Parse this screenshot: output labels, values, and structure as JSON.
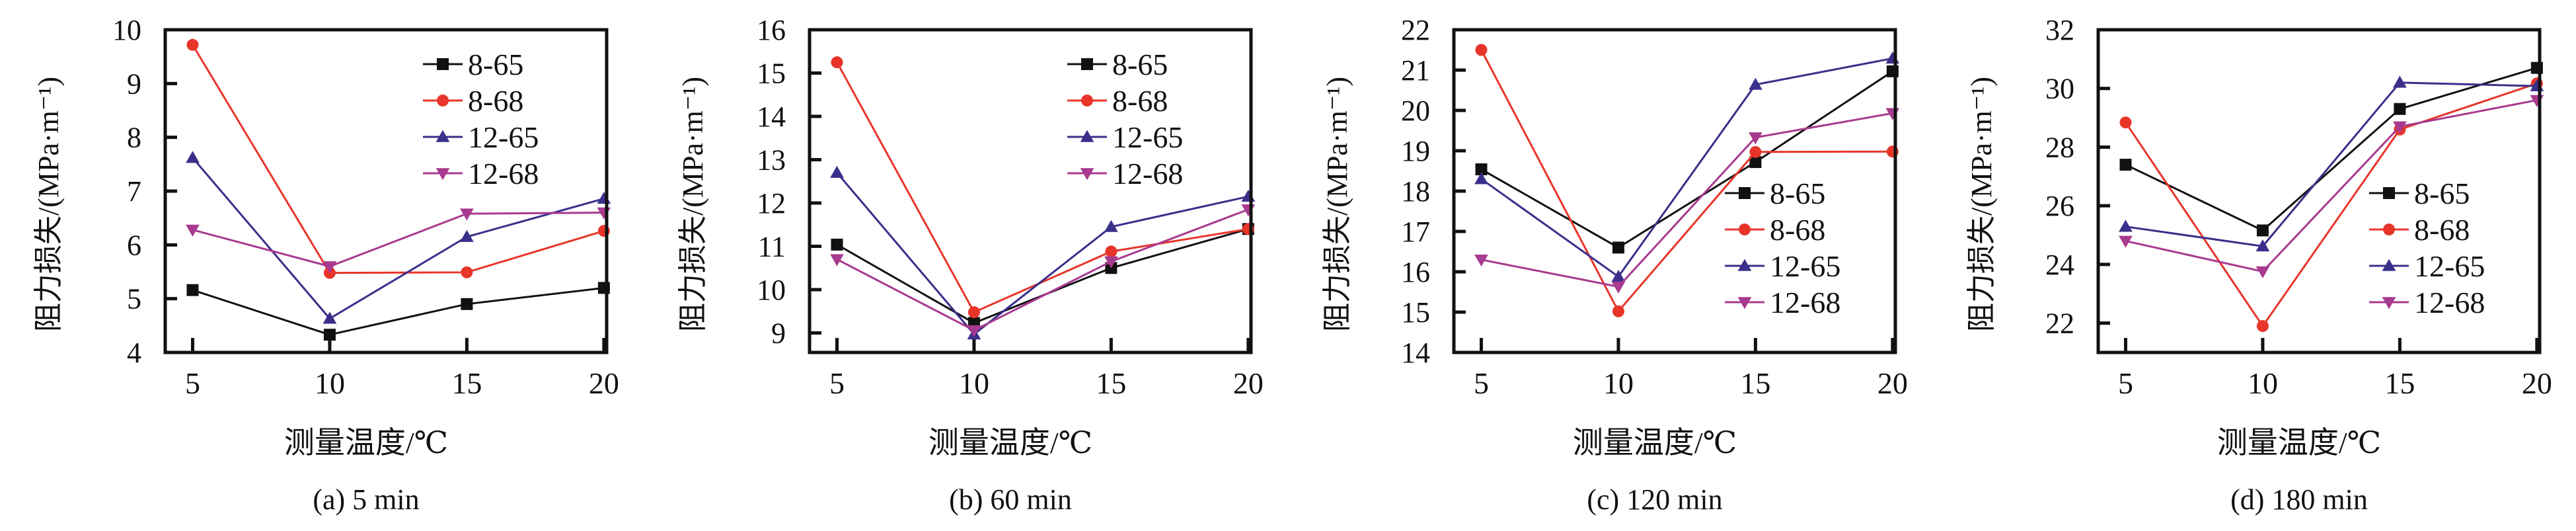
{
  "chart_data": [
    {
      "type": "line",
      "caption": "(a) 5 min",
      "xlabel": "测量温度/℃",
      "ylabel": "阻力损失/(MPa·m⁻¹)",
      "x": [
        5,
        10,
        15,
        20
      ],
      "xticks": [
        5,
        10,
        15,
        20
      ],
      "xlim": [
        4,
        20.1
      ],
      "yticks": [
        4,
        5,
        6,
        7,
        8,
        9,
        10
      ],
      "ylim": [
        4,
        10
      ],
      "legend_position": "top-right",
      "series": [
        {
          "name": "8-65",
          "color": "#111111",
          "marker": "square",
          "values": [
            5.16,
            4.33,
            4.9,
            5.2
          ]
        },
        {
          "name": "8-68",
          "color": "#e8352a",
          "marker": "circle",
          "values": [
            9.72,
            5.48,
            5.49,
            6.26
          ]
        },
        {
          "name": "12-65",
          "color": "#3a2f8a",
          "marker": "triangle-up",
          "values": [
            7.62,
            4.63,
            6.15,
            6.86
          ]
        },
        {
          "name": "12-68",
          "color": "#a83a8f",
          "marker": "triangle-down",
          "values": [
            6.28,
            5.6,
            6.58,
            6.6
          ]
        }
      ]
    },
    {
      "type": "line",
      "caption": "(b) 60 min",
      "xlabel": "测量温度/℃",
      "ylabel": "阻力损失/(MPa·m⁻¹)",
      "x": [
        5,
        10,
        15,
        20
      ],
      "xticks": [
        5,
        10,
        15,
        20
      ],
      "xlim": [
        4,
        20.1
      ],
      "yticks": [
        9,
        10,
        11,
        12,
        13,
        14,
        15,
        16
      ],
      "ylim": [
        8.55,
        16
      ],
      "legend_position": "top-right",
      "series": [
        {
          "name": "8-65",
          "color": "#111111",
          "marker": "square",
          "values": [
            11.04,
            9.23,
            10.5,
            11.4
          ]
        },
        {
          "name": "8-68",
          "color": "#e8352a",
          "marker": "circle",
          "values": [
            15.25,
            9.48,
            10.88,
            11.4
          ]
        },
        {
          "name": "12-65",
          "color": "#3a2f8a",
          "marker": "triangle-up",
          "values": [
            12.7,
            8.97,
            11.45,
            12.15
          ]
        },
        {
          "name": "12-68",
          "color": "#a83a8f",
          "marker": "triangle-down",
          "values": [
            10.7,
            9.06,
            10.65,
            11.85
          ]
        }
      ]
    },
    {
      "type": "line",
      "caption": "(c) 120 min",
      "xlabel": "测量温度/℃",
      "ylabel": "阻力损失/(MPa·m⁻¹)",
      "x": [
        5,
        10,
        15,
        20
      ],
      "xticks": [
        5,
        10,
        15,
        20
      ],
      "xlim": [
        4,
        20.1
      ],
      "yticks": [
        14,
        15,
        16,
        17,
        18,
        19,
        20,
        21,
        22
      ],
      "ylim": [
        14,
        22
      ],
      "legend_position": "center-right",
      "series": [
        {
          "name": "8-65",
          "color": "#111111",
          "marker": "square",
          "values": [
            18.54,
            16.6,
            18.72,
            20.97
          ]
        },
        {
          "name": "8-68",
          "color": "#e8352a",
          "marker": "circle",
          "values": [
            21.5,
            15.02,
            18.97,
            18.98
          ]
        },
        {
          "name": "12-65",
          "color": "#3a2f8a",
          "marker": "triangle-up",
          "values": [
            18.3,
            15.88,
            20.64,
            21.29
          ]
        },
        {
          "name": "12-68",
          "color": "#a83a8f",
          "marker": "triangle-down",
          "values": [
            16.3,
            15.63,
            19.33,
            19.93
          ]
        }
      ]
    },
    {
      "type": "line",
      "caption": "(d) 180 min",
      "xlabel": "测量温度/℃",
      "ylabel": "阻力损失/(MPa·m⁻¹)",
      "x": [
        5,
        10,
        15,
        20
      ],
      "xticks": [
        5,
        10,
        15,
        20
      ],
      "xlim": [
        4,
        20.1
      ],
      "yticks": [
        22,
        24,
        26,
        28,
        30,
        32
      ],
      "ylim": [
        21,
        32
      ],
      "legend_position": "center-right",
      "series": [
        {
          "name": "8-65",
          "color": "#111111",
          "marker": "square",
          "values": [
            27.4,
            25.16,
            29.3,
            30.7
          ]
        },
        {
          "name": "8-68",
          "color": "#e8352a",
          "marker": "circle",
          "values": [
            28.84,
            21.9,
            28.6,
            30.17
          ]
        },
        {
          "name": "12-65",
          "color": "#3a2f8a",
          "marker": "triangle-up",
          "values": [
            25.29,
            24.62,
            30.2,
            30.08
          ]
        },
        {
          "name": "12-68",
          "color": "#a83a8f",
          "marker": "triangle-down",
          "values": [
            24.8,
            23.76,
            28.7,
            29.6
          ]
        }
      ]
    }
  ]
}
